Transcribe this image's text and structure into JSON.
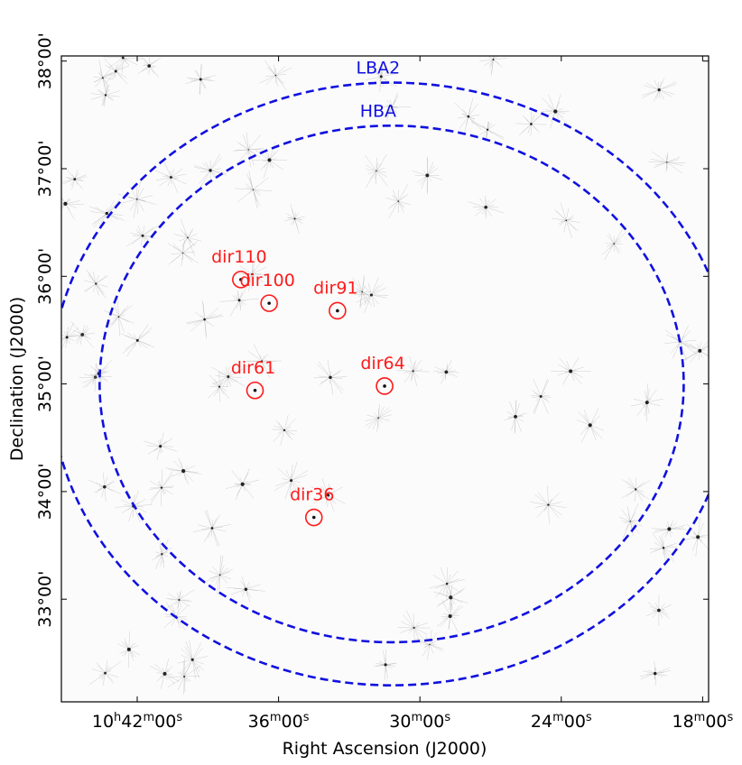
{
  "axes": {
    "xlabel": "Right Ascension (J2000)",
    "ylabel": "Declination (J2000)",
    "x_ticks": [
      {
        "h": "10",
        "m": "42",
        "s": "00",
        "ra_min": 642
      },
      {
        "h": "",
        "m": "36",
        "s": "00",
        "ra_min": 636
      },
      {
        "h": "",
        "m": "30",
        "s": "00",
        "ra_min": 630
      },
      {
        "h": "",
        "m": "24",
        "s": "00",
        "ra_min": 624
      },
      {
        "h": "",
        "m": "18",
        "s": "00",
        "ra_min": 618
      }
    ],
    "y_ticks": [
      {
        "label": "38°00'",
        "dec": 38
      },
      {
        "label": "37°00'",
        "dec": 37
      },
      {
        "label": "36°00'",
        "dec": 36
      },
      {
        "label": "35°00'",
        "dec": 35
      },
      {
        "label": "34°00'",
        "dec": 34
      },
      {
        "label": "33°00'",
        "dec": 33
      }
    ]
  },
  "beams": [
    {
      "label": "LBA2",
      "color": "#1010e0",
      "ra_min": 631.2,
      "dec": 35.0,
      "radius_deg": 2.8
    },
    {
      "label": "HBA",
      "color": "#1010e0",
      "ra_min": 631.2,
      "dec": 35.0,
      "radius_deg": 2.4
    }
  ],
  "directions": [
    {
      "label": "dir110",
      "ra_min": 637.6,
      "dec": 35.97
    },
    {
      "label": "dir100",
      "ra_min": 636.4,
      "dec": 35.75
    },
    {
      "label": "dir91",
      "ra_min": 633.5,
      "dec": 35.68
    },
    {
      "label": "dir61",
      "ra_min": 637.0,
      "dec": 34.94
    },
    {
      "label": "dir64",
      "ra_min": 631.5,
      "dec": 34.98
    },
    {
      "label": "dir36",
      "ra_min": 634.5,
      "dec": 33.76
    }
  ],
  "colors": {
    "direction": "#ff1a1a",
    "beam": "#1010e0"
  }
}
